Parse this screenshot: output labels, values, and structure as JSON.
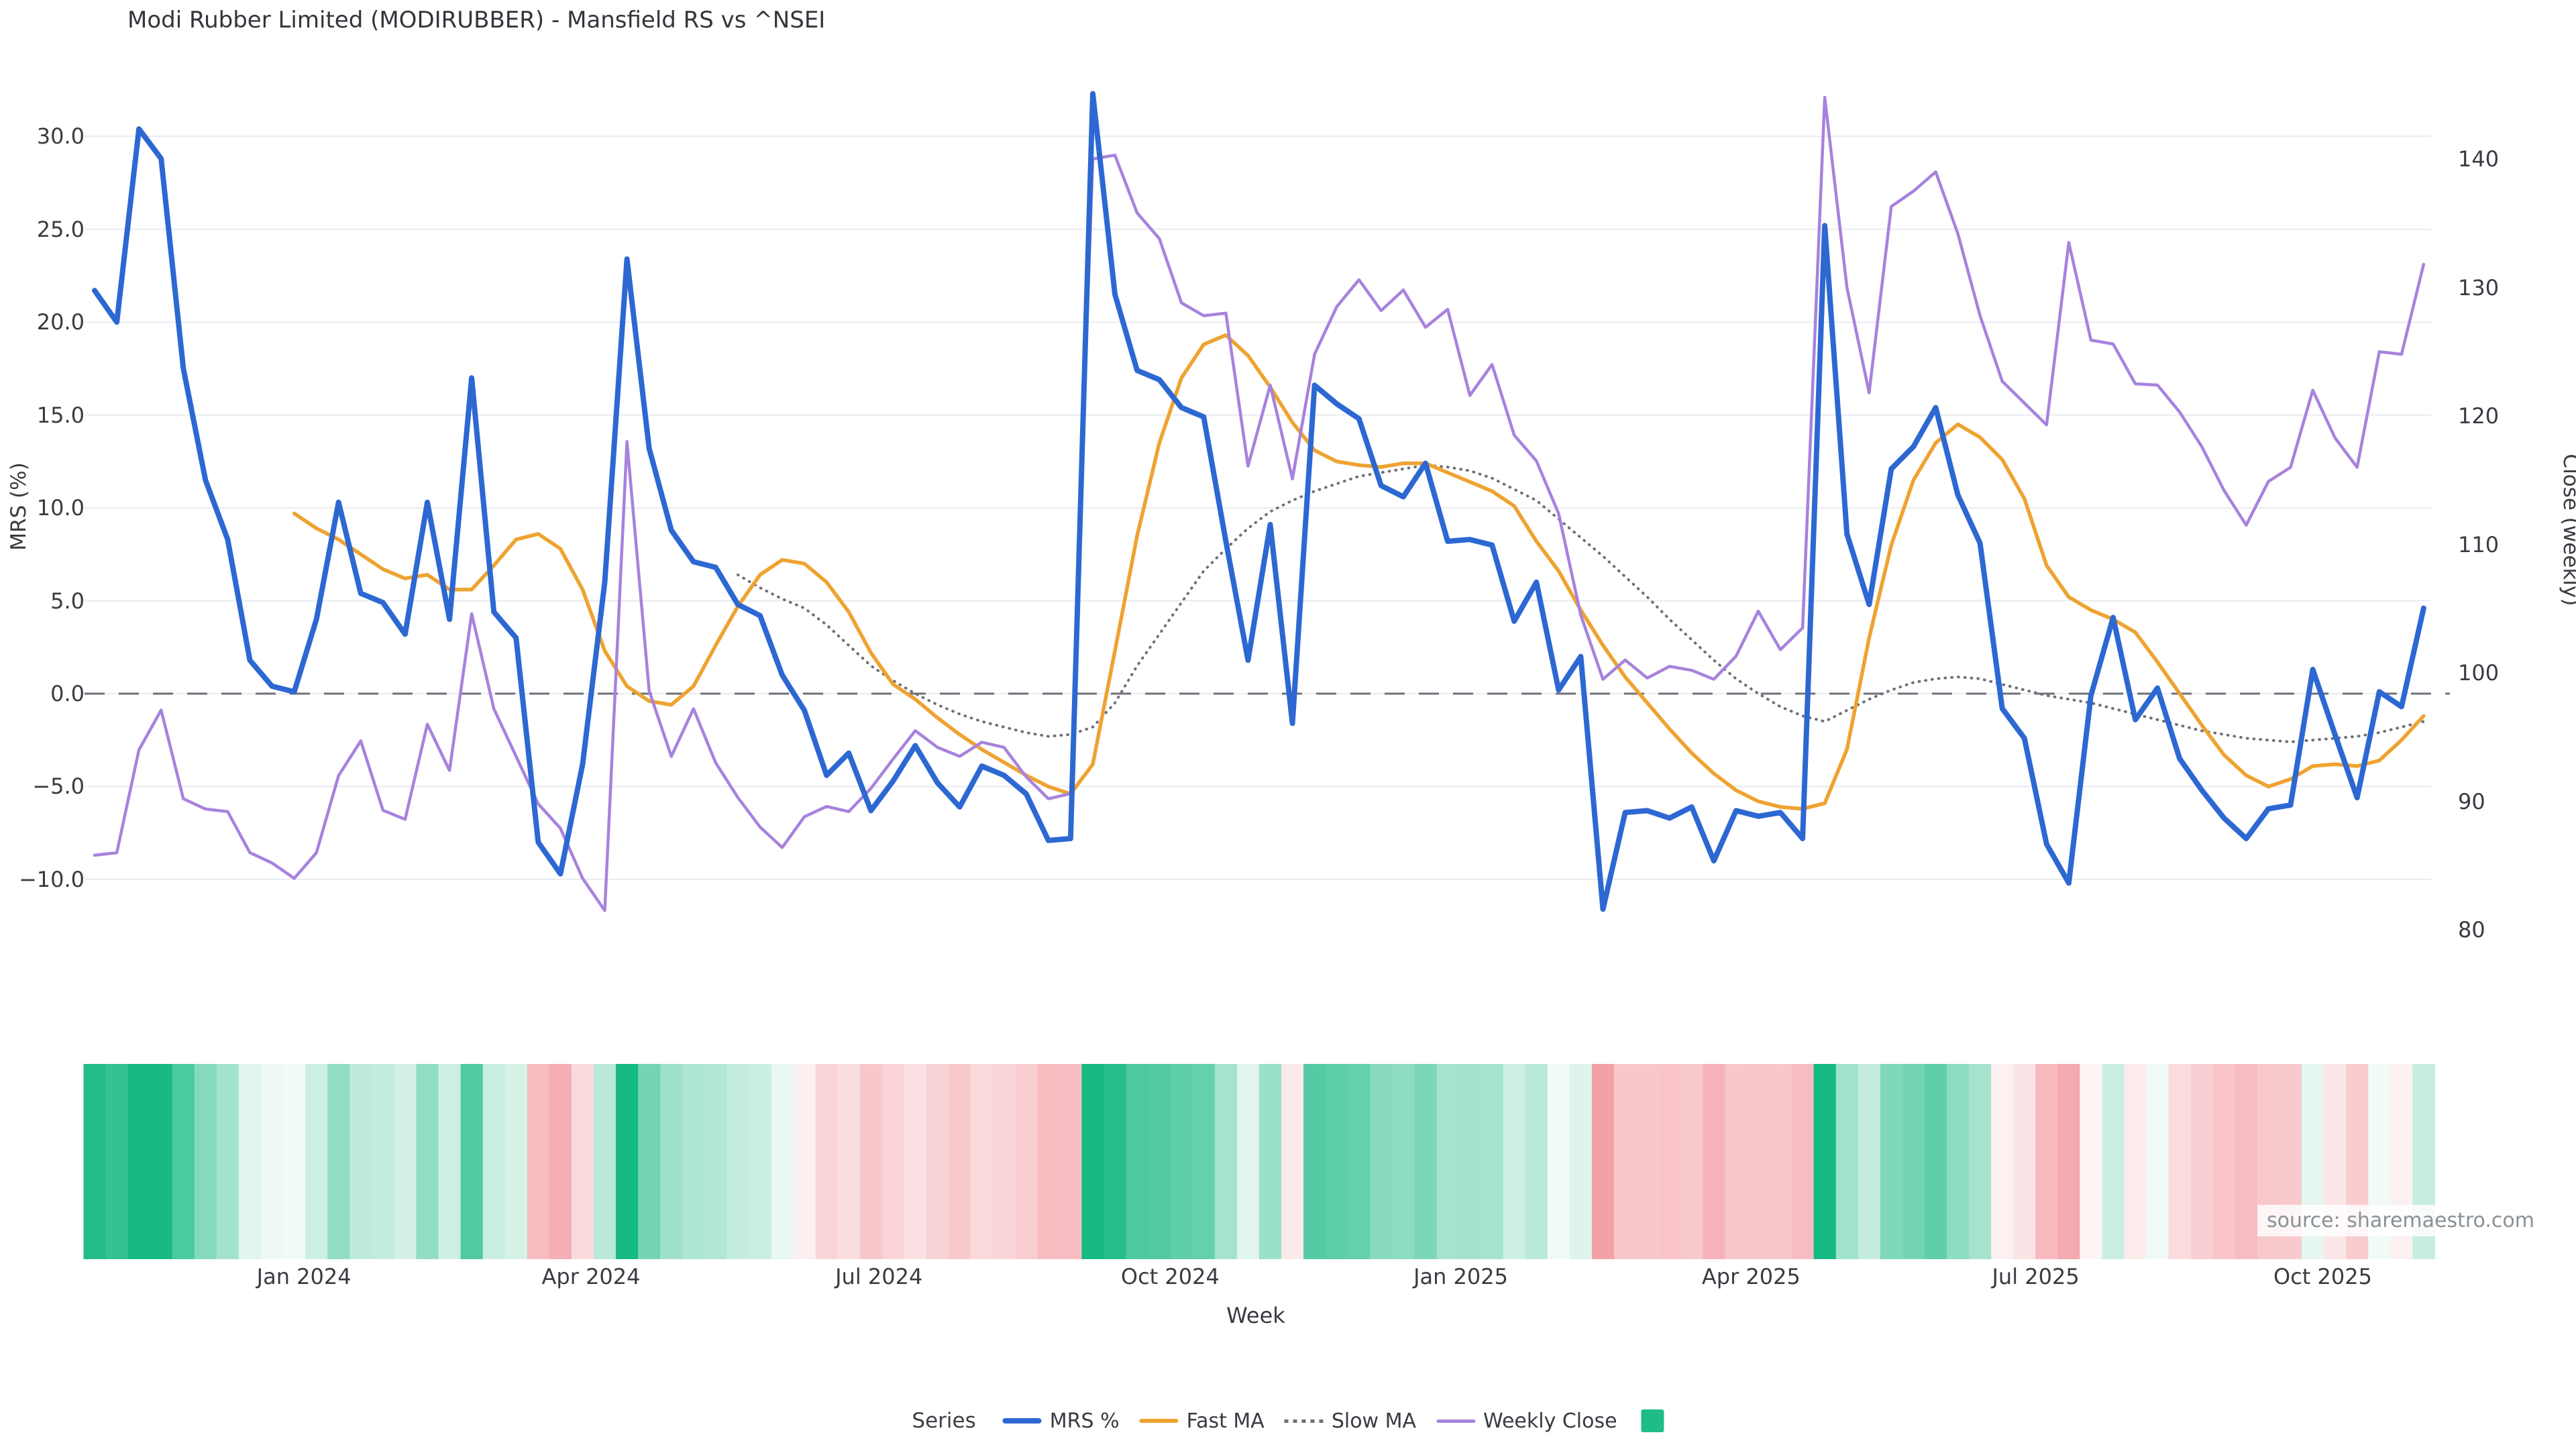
{
  "title": "Modi Rubber Limited (MODIRUBBER) - Mansfield RS vs ^NSEI",
  "source_text": "source: sharemaestro.com",
  "axes": {
    "x_label": "Week",
    "y_left_label": "MRS (%)",
    "y_right_label": "Close (weekly)",
    "y_left_ticks": [
      {
        "label": "30.0",
        "value": 30
      },
      {
        "label": "25.0",
        "value": 25
      },
      {
        "label": "20.0",
        "value": 20
      },
      {
        "label": "15.0",
        "value": 15
      },
      {
        "label": "10.0",
        "value": 10
      },
      {
        "label": "5.0",
        "value": 5
      },
      {
        "label": "0.0",
        "value": 0
      },
      {
        "label": "−5.0",
        "value": -5
      },
      {
        "label": "−10.0",
        "value": -10
      }
    ],
    "y_right_ticks": [
      {
        "label": "140",
        "value": 140
      },
      {
        "label": "130",
        "value": 130
      },
      {
        "label": "120",
        "value": 120
      },
      {
        "label": "110",
        "value": 110
      },
      {
        "label": "100",
        "value": 100
      },
      {
        "label": "90",
        "value": 90
      },
      {
        "label": "80",
        "value": 80
      }
    ],
    "x_ticks": [
      {
        "label": "Jan 2024",
        "week": 9.44
      },
      {
        "label": "Apr 2024",
        "week": 22.38
      },
      {
        "label": "Jul 2024",
        "week": 35.36
      },
      {
        "label": "Oct 2024",
        "week": 48.49
      },
      {
        "label": "Jan 2025",
        "week": 61.59
      },
      {
        "label": "Apr 2025",
        "week": 74.68
      },
      {
        "label": "Jul 2025",
        "week": 87.51
      },
      {
        "label": "Oct 2025",
        "week": 100.45
      }
    ]
  },
  "legend": {
    "title": "Series",
    "items": [
      {
        "label": "MRS %",
        "swatch": "mrs"
      },
      {
        "label": "Fast MA",
        "swatch": "fast"
      },
      {
        "label": "Slow MA",
        "swatch": "slow"
      },
      {
        "label": "Weekly Close",
        "swatch": "close"
      },
      {
        "label": "",
        "swatch": "square"
      }
    ]
  },
  "colors": {
    "mrs": "#2d68d2",
    "fast": "#eea331",
    "slow": "#6f6f76",
    "close": "#a782dd",
    "zero_line": "#70707a",
    "grid": "#e9ebf0",
    "heat_pos": "#17b984",
    "heat_neg": "#f4a0a7",
    "legend_square": "#1fbc87"
  },
  "chart_data": {
    "type": "line",
    "title": "Modi Rubber Limited (MODIRUBBER) - Mansfield RS vs ^NSEI",
    "xlabel": "Week",
    "ylabel_left": "MRS (%)",
    "ylabel_right": "Close (weekly)",
    "x_unit": "weekly, Nov 2023 - Nov 2025",
    "ylim_left": [
      -13,
      33.5
    ],
    "ylim_right": [
      78,
      146
    ],
    "grid": true,
    "legend_position": "bottom",
    "zero_reference_line": 0,
    "series": [
      {
        "name": "MRS %",
        "axis": "left",
        "style": "solid-thick",
        "start_index": 0,
        "values": [
          21.7,
          20.0,
          30.4,
          28.8,
          17.5,
          11.5,
          8.3,
          1.8,
          0.4,
          0.1,
          4.0,
          10.3,
          5.4,
          4.9,
          3.2,
          10.3,
          4.0,
          17.0,
          4.4,
          3.0,
          -8.0,
          -9.7,
          -3.8,
          6.0,
          23.4,
          13.2,
          8.8,
          7.1,
          6.8,
          4.8,
          4.2,
          1.0,
          -0.9,
          -4.4,
          -3.2,
          -6.3,
          -4.7,
          -2.8,
          -4.8,
          -6.1,
          -3.9,
          -4.4,
          -5.4,
          -7.9,
          -7.8,
          32.3,
          21.5,
          17.4,
          16.9,
          15.4,
          14.9,
          8.2,
          1.8,
          9.1,
          -1.6,
          16.6,
          15.6,
          14.8,
          11.2,
          10.6,
          12.4,
          8.2,
          8.3,
          8.0,
          3.9,
          6.0,
          0.2,
          2.0,
          -11.6,
          -6.4,
          -6.3,
          -6.7,
          -6.1,
          -9.0,
          -6.3,
          -6.6,
          -6.4,
          -7.8,
          25.2,
          8.6,
          4.8,
          12.1,
          13.3,
          15.4,
          10.7,
          8.1,
          -0.8,
          -2.4,
          -8.1,
          -10.2,
          -0.1,
          4.1,
          -1.4,
          0.3,
          -3.5,
          -5.2,
          -6.7,
          -7.8,
          -6.2,
          -6.0,
          1.3,
          -2.2,
          -5.6,
          0.1,
          -0.7,
          4.6
        ]
      },
      {
        "name": "Fast MA",
        "axis": "left",
        "style": "solid",
        "start_index": 9,
        "values": [
          9.7,
          8.9,
          8.3,
          7.5,
          6.7,
          6.2,
          6.4,
          5.6,
          5.6,
          6.9,
          8.3,
          8.6,
          7.8,
          5.6,
          2.3,
          0.4,
          -0.4,
          -0.6,
          0.4,
          2.6,
          4.7,
          6.4,
          7.2,
          7.0,
          6.0,
          4.4,
          2.2,
          0.5,
          -0.3,
          -1.3,
          -2.2,
          -3.0,
          -3.7,
          -4.4,
          -5.0,
          -5.4,
          -3.8,
          2.3,
          8.5,
          13.5,
          17.0,
          18.8,
          19.3,
          18.2,
          16.5,
          14.6,
          13.1,
          12.5,
          12.3,
          12.2,
          12.4,
          12.4,
          11.9,
          11.4,
          10.9,
          10.1,
          8.2,
          6.6,
          4.5,
          2.6,
          0.9,
          -0.5,
          -1.9,
          -3.2,
          -4.3,
          -5.2,
          -5.8,
          -6.1,
          -6.2,
          -5.9,
          -3.0,
          3.0,
          8.0,
          11.5,
          13.5,
          14.5,
          13.8,
          12.6,
          10.5,
          6.9,
          5.2,
          4.5,
          4.0,
          3.3,
          1.7,
          0.0,
          -1.7,
          -3.3,
          -4.4,
          -5.0,
          -4.6,
          -3.9,
          -3.8,
          -3.9,
          -3.6,
          -2.5,
          -1.2
        ]
      },
      {
        "name": "Slow MA",
        "axis": "left",
        "style": "dotted",
        "start_index": 29,
        "values": [
          6.4,
          5.7,
          5.1,
          4.6,
          3.7,
          2.6,
          1.5,
          0.7,
          0.0,
          -0.6,
          -1.1,
          -1.5,
          -1.8,
          -2.1,
          -2.3,
          -2.2,
          -1.8,
          -0.5,
          1.5,
          3.2,
          4.9,
          6.6,
          7.8,
          8.9,
          9.8,
          10.4,
          10.9,
          11.3,
          11.7,
          11.9,
          12.1,
          12.3,
          12.2,
          12.0,
          11.6,
          11.0,
          10.4,
          9.4,
          8.4,
          7.4,
          6.3,
          5.2,
          4.0,
          2.9,
          1.8,
          0.8,
          0.0,
          -0.7,
          -1.2,
          -1.5,
          -0.9,
          -0.3,
          0.2,
          0.6,
          0.8,
          0.9,
          0.8,
          0.5,
          0.2,
          -0.1,
          -0.3,
          -0.5,
          -0.8,
          -1.1,
          -1.4,
          -1.7,
          -2.0,
          -2.2,
          -2.4,
          -2.5,
          -2.6,
          -2.5,
          -2.4,
          -2.3,
          -2.1,
          -1.8,
          -1.5
        ]
      },
      {
        "name": "Weekly Close",
        "axis": "right",
        "style": "solid-thin",
        "start_index": 0,
        "values": [
          85.8,
          86.0,
          94.0,
          97.1,
          90.2,
          89.4,
          89.2,
          86.0,
          85.2,
          84.0,
          86.0,
          92.0,
          94.7,
          89.3,
          88.6,
          96.0,
          92.4,
          104.6,
          97.2,
          93.5,
          89.8,
          87.9,
          84.0,
          81.5,
          118.0,
          98.6,
          93.5,
          97.2,
          93.0,
          90.3,
          88.0,
          86.4,
          88.8,
          89.6,
          89.2,
          91.0,
          93.3,
          95.5,
          94.2,
          93.5,
          94.6,
          94.2,
          91.9,
          90.2,
          90.6,
          140.0,
          140.3,
          135.8,
          133.8,
          128.8,
          127.8,
          128.0,
          116.1,
          122.4,
          115.1,
          124.8,
          128.5,
          130.6,
          128.2,
          129.8,
          126.9,
          128.3,
          121.6,
          124.0,
          118.5,
          116.5,
          112.4,
          104.5,
          99.5,
          101.0,
          99.6,
          100.5,
          100.2,
          99.5,
          101.3,
          104.8,
          101.8,
          103.5,
          144.8,
          130.0,
          121.8,
          136.3,
          137.5,
          139.0,
          134.2,
          127.8,
          122.7,
          121.0,
          119.3,
          133.5,
          125.9,
          125.6,
          122.5,
          122.4,
          120.3,
          117.6,
          114.2,
          111.5,
          114.9,
          116.0,
          122.0,
          118.3,
          116.0,
          125.0,
          124.8,
          131.8
        ]
      }
    ],
    "heatmap_strip": {
      "derived_from": "MRS %",
      "positive_color": "green",
      "negative_color": "red",
      "position": "below x-axis"
    }
  }
}
